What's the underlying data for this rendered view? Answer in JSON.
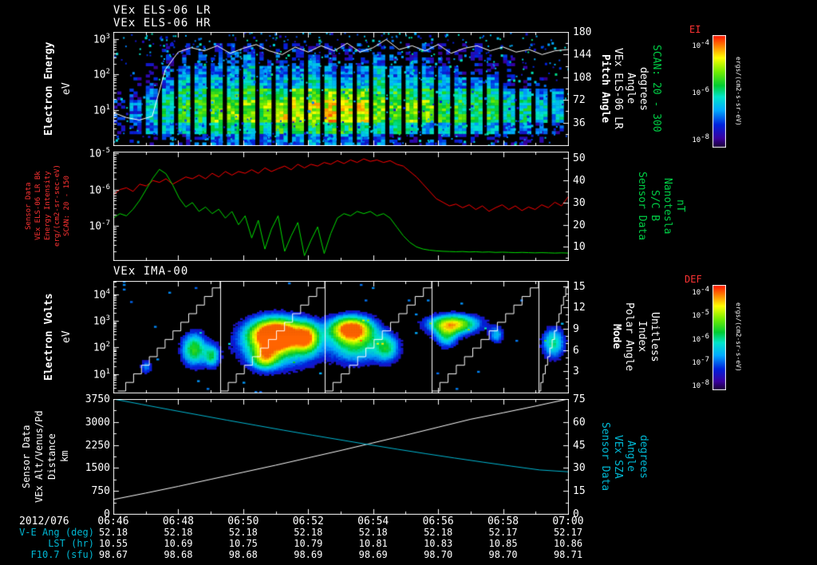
{
  "header": {
    "title_lr": "VEx ELS-06 LR",
    "title_hr": "VEx ELS-06 HR",
    "title_ima": "VEx IMA-00"
  },
  "colors": {
    "background": "#000000",
    "axis": "#ffffff",
    "red_series": "#ff0000",
    "green_series": "#00dd00",
    "cyan_series": "#00b8d4",
    "label_red": "#ff3333",
    "label_green": "#00cc44",
    "label_cyan": "#00b8d4"
  },
  "colormap": [
    [
      0,
      "#1a0033"
    ],
    [
      0.08,
      "#3a00a0"
    ],
    [
      0.2,
      "#0022dd"
    ],
    [
      0.33,
      "#00aaff"
    ],
    [
      0.45,
      "#00e6cc"
    ],
    [
      0.55,
      "#00cc33"
    ],
    [
      0.68,
      "#77ee00"
    ],
    [
      0.8,
      "#ffff00"
    ],
    [
      0.9,
      "#ff8800"
    ],
    [
      1,
      "#ff1100"
    ]
  ],
  "chart_data": [
    {
      "type": "heatmap",
      "name": "VEx ELS-06 LR electron energy spectrogram",
      "ylabel": "Electron Energy (eV)",
      "ylog_range": [
        0,
        3.2
      ],
      "yticks": [
        "10^3",
        "10^2",
        "10^1"
      ],
      "right_axis": {
        "label": "Pitch Angle VEx ELS-06 LR Angle degrees SCAN: 20 - 300",
        "range": [
          0,
          180
        ],
        "ticks": [
          180,
          144,
          108,
          72,
          36
        ]
      },
      "colorbar": "EI",
      "grid_encoding": "digits 0-9 relative log intensity; rows top (10^3.2 eV) to bottom (10^0 eV); 28 time columns spanning 06:46-07:00",
      "intensity_grid": [
        "0000000000000000000000000000",
        "0001111211121112111211100000",
        "0011222232223222322221111000",
        "0012333343334333433332221100",
        "0123444454445444544443332210",
        "1234556666677777666655554433",
        "2345667777788888777766665544",
        "2345667777888988777766665544",
        "1234455555666665555444443322",
        "0112223333334333322221111110"
      ],
      "overlay_pitch_angle": {
        "color": "#ffffff",
        "range": [
          0,
          180
        ],
        "values": [
          52,
          44,
          40,
          46,
          120,
          148,
          155,
          150,
          158,
          146,
          154,
          160,
          150,
          144,
          156,
          148,
          158,
          150,
          162,
          148,
          155,
          168,
          152,
          158,
          150,
          160,
          146,
          154,
          158,
          150,
          156,
          148,
          152,
          144,
          150,
          152
        ]
      }
    },
    {
      "type": "line",
      "name": "ELS background intensity and spacecraft magnetic field",
      "left_axis": {
        "label": "Sensor Data VEx ELS-06 LR Bk Energy Intensity erg/(cm2-sr-sec-eV) SCAN: 20 - 150",
        "ticks": [
          "10^-5",
          "10^-6",
          "10^-7"
        ],
        "log_range": [
          -7.95,
          -4.95
        ]
      },
      "right_axis": {
        "label": "Sensor Data S/C B Nanotesla nT",
        "ticks": [
          50,
          40,
          30,
          20,
          10
        ],
        "range": [
          4,
          53
        ]
      },
      "series": [
        {
          "name": "VEx ELS-06 LR Bk intensity",
          "color": "#ff0000",
          "axis": "left",
          "log10_values": [
            -6.15,
            -6.0,
            -5.95,
            -6.05,
            -5.85,
            -5.9,
            -5.75,
            -5.8,
            -5.7,
            -5.85,
            -5.75,
            -5.65,
            -5.7,
            -5.6,
            -5.7,
            -5.55,
            -5.65,
            -5.5,
            -5.6,
            -5.5,
            -5.55,
            -5.45,
            -5.55,
            -5.4,
            -5.5,
            -5.42,
            -5.35,
            -5.45,
            -5.3,
            -5.4,
            -5.3,
            -5.35,
            -5.25,
            -5.3,
            -5.2,
            -5.28,
            -5.18,
            -5.25,
            -5.15,
            -5.22,
            -5.18,
            -5.25,
            -5.2,
            -5.3,
            -5.35,
            -5.5,
            -5.65,
            -5.85,
            -6.05,
            -6.25,
            -6.35,
            -6.45,
            -6.4,
            -6.5,
            -6.42,
            -6.55,
            -6.45,
            -6.6,
            -6.5,
            -6.42,
            -6.55,
            -6.45,
            -6.58,
            -6.48,
            -6.55,
            -6.42,
            -6.5,
            -6.35,
            -6.45,
            -6.2
          ]
        },
        {
          "name": "S/C B (nT)",
          "color": "#00dd00",
          "axis": "right",
          "values": [
            23,
            25,
            24,
            27,
            31,
            36,
            41,
            45,
            43,
            38,
            32,
            28,
            30,
            26,
            28,
            25,
            27,
            23,
            26,
            20,
            24,
            14,
            22,
            9,
            18,
            24,
            8,
            15,
            21,
            6,
            13,
            19,
            7,
            16,
            23,
            25,
            24,
            26,
            25,
            26,
            24,
            25,
            23,
            19,
            15,
            12,
            10,
            9,
            8.5,
            8.2,
            8,
            7.9,
            7.8,
            7.9,
            7.7,
            7.8,
            7.6,
            7.7,
            7.5,
            7.6,
            7.5,
            7.4,
            7.5,
            7.4,
            7.3,
            7.4,
            7.3,
            7.2,
            7.3,
            7.2
          ]
        }
      ]
    },
    {
      "type": "heatmap",
      "name": "VEx IMA-00 ion spectrogram",
      "ylabel": "Electron Volts (eV)",
      "ylog_range": [
        0.3,
        4.5
      ],
      "yticks": [
        "10^4",
        "10^3",
        "10^2",
        "10^1"
      ],
      "right_axis": {
        "label": "Mode Polar Angle Index Unitless",
        "range": [
          0,
          15.75
        ],
        "ticks": [
          15,
          12,
          9,
          6,
          3
        ]
      },
      "colorbar": "DEF",
      "blobs": [
        {
          "t": 0.175,
          "log_ev": 1.95,
          "t_sigma": 0.02,
          "e_sigma": 0.45,
          "amp": 0.6
        },
        {
          "t": 0.215,
          "log_ev": 1.7,
          "t_sigma": 0.012,
          "e_sigma": 0.3,
          "amp": 0.45
        },
        {
          "t": 0.355,
          "log_ev": 2.55,
          "t_sigma": 0.042,
          "e_sigma": 0.42,
          "amp": 1.0
        },
        {
          "t": 0.36,
          "log_ev": 2.05,
          "t_sigma": 0.06,
          "e_sigma": 0.6,
          "amp": 0.5
        },
        {
          "t": 0.33,
          "log_ev": 1.6,
          "t_sigma": 0.02,
          "e_sigma": 0.28,
          "amp": 0.48
        },
        {
          "t": 0.425,
          "log_ev": 2.4,
          "t_sigma": 0.018,
          "e_sigma": 0.4,
          "amp": 0.55
        },
        {
          "t": 0.52,
          "log_ev": 2.75,
          "t_sigma": 0.034,
          "e_sigma": 0.33,
          "amp": 0.88
        },
        {
          "t": 0.53,
          "log_ev": 2.1,
          "t_sigma": 0.04,
          "e_sigma": 0.5,
          "amp": 0.5
        },
        {
          "t": 0.6,
          "log_ev": 2.0,
          "t_sigma": 0.02,
          "e_sigma": 0.38,
          "amp": 0.45
        },
        {
          "t": 0.745,
          "log_ev": 2.9,
          "t_sigma": 0.04,
          "e_sigma": 0.26,
          "amp": 0.8
        },
        {
          "t": 0.73,
          "log_ev": 2.4,
          "t_sigma": 0.018,
          "e_sigma": 0.3,
          "amp": 0.4
        },
        {
          "t": 0.84,
          "log_ev": 2.5,
          "t_sigma": 0.012,
          "e_sigma": 0.24,
          "amp": 0.35
        },
        {
          "t": 0.965,
          "log_ev": 2.2,
          "t_sigma": 0.018,
          "e_sigma": 0.42,
          "amp": 0.5
        },
        {
          "t": 0.07,
          "log_ev": 1.3,
          "t_sigma": 0.01,
          "e_sigma": 0.2,
          "amp": 0.3
        }
      ],
      "sweep_boundaries": [
        0.235,
        0.465,
        0.7,
        0.935
      ],
      "mode_ramps": [
        {
          "t0": 0.01,
          "t1": 0.235
        },
        {
          "t0": 0.235,
          "t1": 0.465
        },
        {
          "t0": 0.465,
          "t1": 0.7
        },
        {
          "t0": 0.7,
          "t1": 0.935
        },
        {
          "t0": 0.935,
          "t1": 1.0
        }
      ]
    },
    {
      "type": "line",
      "name": "VEx altitude and solar zenith angle",
      "left_axis": {
        "label": "Sensor Data VEx Alt/Venus/Pd Distance km",
        "ticks": [
          3750,
          3000,
          2250,
          1500,
          750,
          0
        ],
        "range": [
          0,
          3750
        ]
      },
      "right_axis": {
        "label": "Sensor Data VEx SZA Angle degrees",
        "ticks": [
          75,
          60,
          45,
          30,
          15,
          0
        ],
        "range": [
          0,
          75
        ]
      },
      "series": [
        {
          "name": "VEx Alt/Venus/Pd (km)",
          "color": "#ffffff",
          "axis": "left",
          "values": [
            470,
            680,
            900,
            1130,
            1360,
            1590,
            1830,
            2070,
            2320,
            2570,
            2830,
            3090,
            3300,
            3520,
            3750
          ]
        },
        {
          "name": "VEx SZA (deg)",
          "color": "#00b8d4",
          "axis": "right",
          "values": [
            75,
            71.5,
            68,
            64.6,
            61.2,
            57.9,
            54.6,
            51.4,
            48.3,
            45.2,
            42.2,
            39.3,
            36.5,
            33.8,
            31.2,
            28.7,
            27.5
          ]
        }
      ]
    }
  ],
  "colorbars": [
    {
      "title": "EI",
      "units": "ergs/(cm2-s-sr-eV)",
      "tick_labels": [
        "10^-4",
        "10^-6",
        "10^-8"
      ]
    },
    {
      "title": "DEF",
      "units": "ergs/(cm2-sr-s-eV)",
      "tick_labels": [
        "10^-4",
        "10^-5",
        "10^-6",
        "10^-7",
        "10^-8"
      ]
    }
  ],
  "time_axis": {
    "date": "2012/076",
    "ticks": [
      "06:46",
      "06:48",
      "06:50",
      "06:52",
      "06:54",
      "06:56",
      "06:58",
      "07:00"
    ]
  },
  "info_rows": [
    {
      "label": "V-E Ang (deg)",
      "values": [
        "52.18",
        "52.18",
        "52.18",
        "52.18",
        "52.18",
        "52.18",
        "52.17",
        "52.17"
      ]
    },
    {
      "label": "LST (hr)",
      "values": [
        "10.55",
        "10.69",
        "10.75",
        "10.79",
        "10.81",
        "10.83",
        "10.85",
        "10.86"
      ]
    },
    {
      "label": "F10.7 (sfu)",
      "values": [
        "98.67",
        "98.68",
        "98.68",
        "98.69",
        "98.69",
        "98.70",
        "98.70",
        "98.71"
      ]
    }
  ],
  "labels": {
    "p1_left": [
      "Electron Energy",
      "eV"
    ],
    "p1_right": [
      "Pitch Angle",
      "VEx ELS-06 LR",
      "Angle",
      "degrees",
      "SCAN: 20 - 300"
    ],
    "p2_left": [
      "Sensor Data",
      "VEx ELS-06 LR Bk",
      "Energy Intensity",
      "erg/(cm2-sr-sec-eV)",
      "SCAN: 20 - 150"
    ],
    "p2_right": [
      "Sensor Data",
      "S/C B",
      "Nanotesla",
      "nT"
    ],
    "p3_left": [
      "Electron Volts",
      "eV"
    ],
    "p3_right": [
      "Mode",
      "Polar Angle",
      "Index",
      "Unitless"
    ],
    "p4_left": [
      "Sensor Data",
      "VEx Alt/Venus/Pd",
      "Distance",
      "km"
    ],
    "p4_right": [
      "Sensor Data",
      "VEx SZA",
      "Angle",
      "degrees"
    ],
    "cb1_units": "ergs/(cm2-s-sr-eV)",
    "cb2_units": "ergs/(cm2-sr-s-eV)"
  }
}
